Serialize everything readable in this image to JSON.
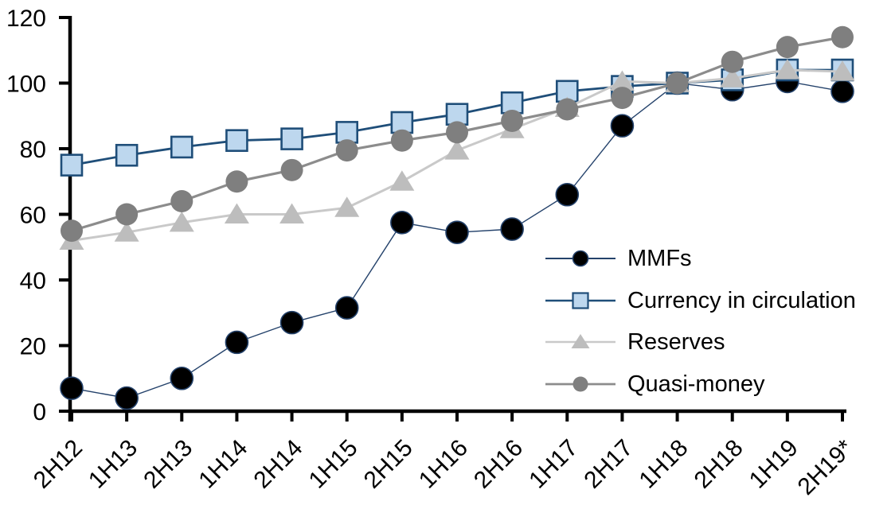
{
  "chart_data": {
    "type": "line",
    "title": "",
    "categories": [
      "2H12",
      "1H13",
      "2H13",
      "1H14",
      "2H14",
      "1H15",
      "2H15",
      "1H16",
      "2H16",
      "1H17",
      "2H17",
      "1H18",
      "2H18",
      "1H19",
      "2H19*"
    ],
    "series": [
      {
        "name": "MMFs",
        "marker": "circle",
        "values": [
          7,
          4,
          10,
          21,
          27,
          31.5,
          57.5,
          54.5,
          55.5,
          66,
          87,
          100,
          98,
          100.5,
          97.5
        ],
        "line_color": "#24426B",
        "line_width": 1.4,
        "marker_fill": "#000000",
        "marker_stroke": "#24426B",
        "marker_stroke_width": 1.6
      },
      {
        "name": "Currency in circulation",
        "marker": "square",
        "values": [
          75,
          78,
          80.5,
          82.5,
          83,
          85,
          88,
          90.5,
          94,
          97.5,
          99,
          100,
          101,
          104,
          104
        ],
        "line_color": "#1F4E79",
        "line_width": 2.8,
        "marker_fill": "#BDD7EE",
        "marker_stroke": "#1F4E79",
        "marker_stroke_width": 2.6
      },
      {
        "name": "Reserves",
        "marker": "triangle",
        "values": [
          52,
          54.5,
          57.5,
          60,
          60,
          62,
          70,
          79.5,
          86,
          92.5,
          100.5,
          100,
          101.5,
          104,
          103.5
        ],
        "line_color": "#C9C9C9",
        "line_width": 3,
        "marker_fill": "#BDBDBD",
        "marker_stroke": "none",
        "marker_stroke_width": 0
      },
      {
        "name": "Quasi-money",
        "marker": "circle",
        "values": [
          55,
          60,
          64,
          70,
          73.5,
          79.5,
          82.5,
          85,
          88.5,
          92,
          95.5,
          100,
          106.5,
          111,
          114
        ],
        "line_color": "#8C8C8C",
        "line_width": 3.2,
        "marker_fill": "#7F7F7F",
        "marker_stroke": "none",
        "marker_stroke_width": 0
      }
    ],
    "y_axis": {
      "min": 0,
      "max": 120,
      "step": 20,
      "ticks": [
        "0",
        "20",
        "40",
        "60",
        "80",
        "100",
        "120"
      ]
    },
    "x_axis": {
      "label_rotation": -45
    },
    "grid": false,
    "legend_position": "inside-right",
    "axis_color": "#000000",
    "text_color": "#000000",
    "background_color": "#FFFFFF"
  }
}
